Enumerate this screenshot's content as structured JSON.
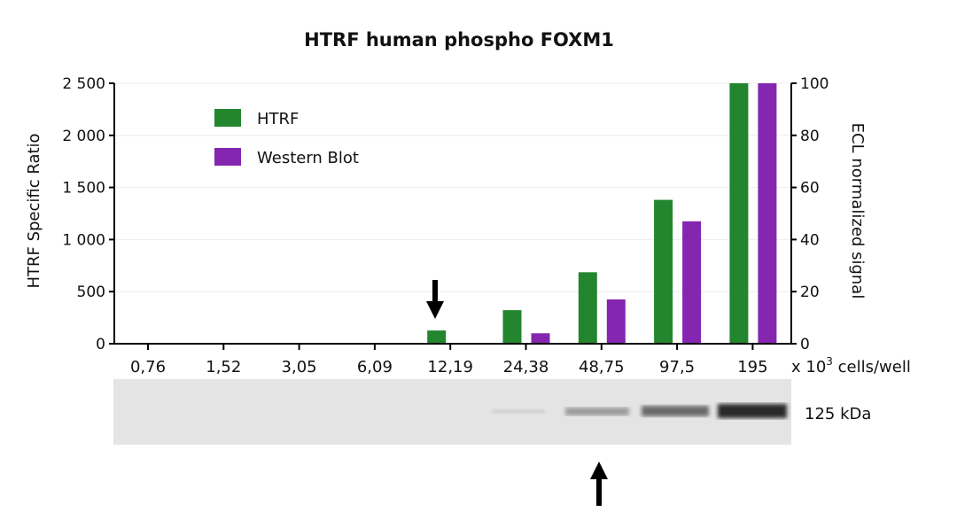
{
  "chart_data": {
    "type": "bar",
    "title": "HTRF human phospho FOXM1",
    "xlabel": "x 10",
    "xlabel_sup": "3",
    "xlabel_unit": " cells/well",
    "ylabel": "HTRF Specific Ratio",
    "y2label": "ECL normalized signal",
    "ylim": [
      0,
      2500
    ],
    "y2lim": [
      0,
      100
    ],
    "yticks": [
      "0",
      "500",
      "1 000",
      "1 500",
      "2 000",
      "2 500"
    ],
    "y2ticks": [
      "0",
      "20",
      "40",
      "60",
      "80",
      "100"
    ],
    "categories": [
      "0,76",
      "1,52",
      "3,05",
      "6,09",
      "12,19",
      "24,38",
      "48,75",
      "97,5",
      "195"
    ],
    "series": [
      {
        "name": "HTRF",
        "axis": "left",
        "color": "#23862e",
        "values": [
          0,
          0,
          0,
          5,
          127,
          322,
          686,
          1381,
          2500
        ]
      },
      {
        "name": "Western Blot",
        "axis": "right",
        "color": "#8526b0",
        "values": [
          0,
          0,
          0,
          0,
          0,
          4,
          17,
          47,
          100
        ]
      }
    ],
    "legend": "top-left",
    "grid": true,
    "annotations": {
      "arrow_down_at": "12,19",
      "arrow_up_at": "48,75"
    },
    "blot_label": "125 kDa"
  }
}
